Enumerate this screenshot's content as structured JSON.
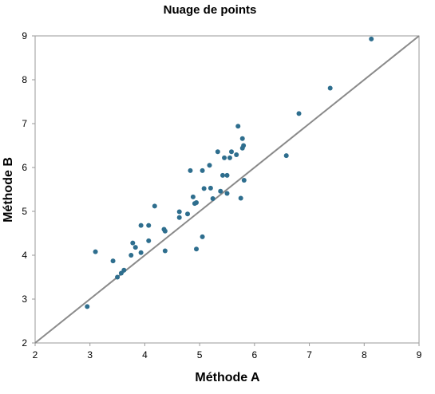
{
  "chart_data": {
    "type": "scatter",
    "title": "Nuage de points",
    "xlabel": "Méthode A",
    "ylabel": "Méthode B",
    "xlim": [
      2,
      9
    ],
    "ylim": [
      2,
      9
    ],
    "xticks": [
      2,
      3,
      4,
      5,
      6,
      7,
      8,
      9
    ],
    "yticks": [
      2,
      3,
      4,
      5,
      6,
      7,
      8,
      9
    ],
    "grid": false,
    "legend": "none",
    "point_color": "#2e6e8e",
    "line_color": "#8a8a8a",
    "reference_line": {
      "from": [
        2,
        2
      ],
      "to": [
        9,
        9
      ]
    },
    "points": [
      [
        2.95,
        2.83
      ],
      [
        3.1,
        4.08
      ],
      [
        3.42,
        3.87
      ],
      [
        3.5,
        3.5
      ],
      [
        3.57,
        3.59
      ],
      [
        3.62,
        3.66
      ],
      [
        3.75,
        4.0
      ],
      [
        3.78,
        4.28
      ],
      [
        3.83,
        4.18
      ],
      [
        3.93,
        4.68
      ],
      [
        3.93,
        4.06
      ],
      [
        4.07,
        4.68
      ],
      [
        4.07,
        4.33
      ],
      [
        4.18,
        5.12
      ],
      [
        4.35,
        4.59
      ],
      [
        4.37,
        4.55
      ],
      [
        4.37,
        4.1
      ],
      [
        4.63,
        4.99
      ],
      [
        4.63,
        4.86
      ],
      [
        4.78,
        4.94
      ],
      [
        4.83,
        5.93
      ],
      [
        4.88,
        5.33
      ],
      [
        4.91,
        5.18
      ],
      [
        4.94,
        5.2
      ],
      [
        4.94,
        4.14
      ],
      [
        5.05,
        4.42
      ],
      [
        5.05,
        5.93
      ],
      [
        5.08,
        5.52
      ],
      [
        5.18,
        6.05
      ],
      [
        5.2,
        5.53
      ],
      [
        5.24,
        5.29
      ],
      [
        5.33,
        6.36
      ],
      [
        5.38,
        5.46
      ],
      [
        5.42,
        5.82
      ],
      [
        5.45,
        6.22
      ],
      [
        5.5,
        5.82
      ],
      [
        5.5,
        5.41
      ],
      [
        5.55,
        6.22
      ],
      [
        5.58,
        6.36
      ],
      [
        5.67,
        6.29
      ],
      [
        5.7,
        6.94
      ],
      [
        5.75,
        5.3
      ],
      [
        5.78,
        6.66
      ],
      [
        5.78,
        6.44
      ],
      [
        5.8,
        6.5
      ],
      [
        5.81,
        5.71
      ],
      [
        6.58,
        6.27
      ],
      [
        6.81,
        7.23
      ],
      [
        7.38,
        7.81
      ],
      [
        8.13,
        8.93
      ]
    ]
  }
}
